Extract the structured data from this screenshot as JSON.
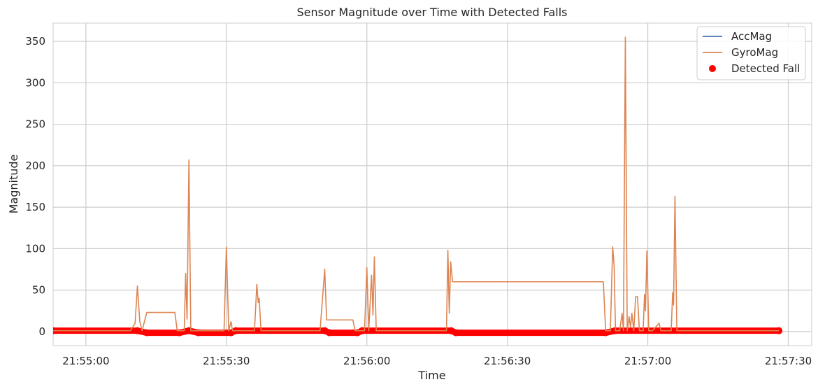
{
  "chart_data": {
    "type": "line",
    "title": "Sensor Magnitude over Time with Detected Falls",
    "xlabel": "Time",
    "ylabel": "Magnitude",
    "x_ticks": [
      "21:55:00",
      "21:55:30",
      "21:56:00",
      "21:56:30",
      "21:57:00",
      "21:57:30"
    ],
    "y_ticks": [
      0,
      50,
      100,
      150,
      200,
      250,
      300,
      350
    ],
    "xlim": [
      "21:54:53",
      "21:57:35"
    ],
    "ylim": [
      -17,
      372
    ],
    "grid": true,
    "legend_position": "top-right",
    "series": [
      {
        "name": "AccMag",
        "kind": "line",
        "color": "#4c72b0",
        "points": [
          [
            "21:54:53",
            1.0
          ],
          [
            "21:55:11",
            1.0
          ],
          [
            "21:55:13",
            -0.5
          ],
          [
            "21:55:20",
            -0.5
          ],
          [
            "21:55:22",
            1.0
          ],
          [
            "21:55:24",
            -0.5
          ],
          [
            "21:55:31",
            -0.5
          ],
          [
            "21:55:32",
            1.0
          ],
          [
            "21:55:51",
            1.0
          ],
          [
            "21:55:52",
            -0.5
          ],
          [
            "21:55:58",
            -0.5
          ],
          [
            "21:55:59",
            1.0
          ],
          [
            "21:56:18",
            1.0
          ],
          [
            "21:56:19",
            -0.3
          ],
          [
            "21:56:51",
            -0.3
          ],
          [
            "21:56:53",
            1.0
          ],
          [
            "21:56:55",
            3.0
          ],
          [
            "21:56:57",
            1.0
          ],
          [
            "21:57:28",
            1.0
          ]
        ]
      },
      {
        "name": "GyroMag",
        "kind": "line",
        "color": "#dd8452",
        "points": [
          [
            "21:54:53",
            1
          ],
          [
            "21:55:09.5",
            1
          ],
          [
            "21:55:10.5",
            10
          ],
          [
            "21:55:11",
            55
          ],
          [
            "21:55:11.5",
            12
          ],
          [
            "21:55:12",
            1
          ],
          [
            "21:55:13",
            23
          ],
          [
            "21:55:19",
            23
          ],
          [
            "21:55:19.5",
            1
          ],
          [
            "21:55:21",
            1
          ],
          [
            "21:55:21.3",
            70
          ],
          [
            "21:55:21.6",
            15
          ],
          [
            "21:55:22",
            207
          ],
          [
            "21:55:22.4",
            1
          ],
          [
            "21:55:29.5",
            1
          ],
          [
            "21:55:30",
            102
          ],
          [
            "21:55:30.5",
            1
          ],
          [
            "21:55:31",
            12
          ],
          [
            "21:55:31.3",
            1
          ],
          [
            "21:55:36",
            1
          ],
          [
            "21:55:36.5",
            57
          ],
          [
            "21:55:36.8",
            35
          ],
          [
            "21:55:37",
            40
          ],
          [
            "21:55:37.4",
            1
          ],
          [
            "21:55:50",
            1
          ],
          [
            "21:55:51",
            75
          ],
          [
            "21:55:51.4",
            14
          ],
          [
            "21:55:57",
            14
          ],
          [
            "21:55:57.5",
            1
          ],
          [
            "21:55:59.5",
            1
          ],
          [
            "21:56:00",
            77
          ],
          [
            "21:56:00.4",
            1
          ],
          [
            "21:56:01",
            68
          ],
          [
            "21:56:01.3",
            20
          ],
          [
            "21:56:01.6",
            90
          ],
          [
            "21:56:02",
            1
          ],
          [
            "21:56:17",
            1
          ],
          [
            "21:56:17.3",
            98
          ],
          [
            "21:56:17.6",
            22
          ],
          [
            "21:56:17.9",
            84
          ],
          [
            "21:56:18.3",
            60
          ],
          [
            "21:56:50.5",
            60
          ],
          [
            "21:56:51",
            1
          ],
          [
            "21:56:52",
            1
          ],
          [
            "21:56:52.5",
            102
          ],
          [
            "21:56:52.8",
            80
          ],
          [
            "21:56:53.1",
            1
          ],
          [
            "21:56:54",
            1
          ],
          [
            "21:56:54.5",
            22
          ],
          [
            "21:56:54.8",
            1
          ],
          [
            "21:56:55.2",
            355
          ],
          [
            "21:56:55.6",
            1
          ],
          [
            "21:56:56",
            18
          ],
          [
            "21:56:56.3",
            5
          ],
          [
            "21:56:56.6",
            22
          ],
          [
            "21:56:57",
            1
          ],
          [
            "21:56:57.4",
            42
          ],
          [
            "21:56:57.8",
            42
          ],
          [
            "21:56:58.2",
            1
          ],
          [
            "21:56:59",
            1
          ],
          [
            "21:56:59.3",
            45
          ],
          [
            "21:56:59.5",
            25
          ],
          [
            "21:56:59.8",
            97
          ],
          [
            "21:57:00.2",
            1
          ],
          [
            "21:57:01",
            1
          ],
          [
            "21:57:02.4",
            10
          ],
          [
            "21:57:02.8",
            1
          ],
          [
            "21:57:05",
            1
          ],
          [
            "21:57:05.3",
            47
          ],
          [
            "21:57:05.5",
            32
          ],
          [
            "21:57:05.8",
            163
          ],
          [
            "21:57:06.2",
            1
          ],
          [
            "21:57:28",
            1
          ]
        ]
      },
      {
        "name": "Detected Fall",
        "kind": "scatter",
        "color": "#ff0000",
        "points": [
          [
            "21:54:53",
            1
          ],
          [
            "21:55:11",
            1
          ],
          [
            "21:55:13",
            -1.5
          ],
          [
            "21:55:20",
            -1.5
          ],
          [
            "21:55:22",
            1
          ],
          [
            "21:55:24",
            -1.5
          ],
          [
            "21:55:31",
            -1.5
          ],
          [
            "21:55:32",
            1
          ],
          [
            "21:55:51",
            1
          ],
          [
            "21:55:52",
            -1.5
          ],
          [
            "21:55:58",
            -1.5
          ],
          [
            "21:55:59",
            1
          ],
          [
            "21:56:18",
            1
          ],
          [
            "21:56:19",
            -1.5
          ],
          [
            "21:56:51",
            -1.5
          ],
          [
            "21:56:53",
            1
          ],
          [
            "21:57:28",
            1
          ]
        ]
      }
    ]
  }
}
